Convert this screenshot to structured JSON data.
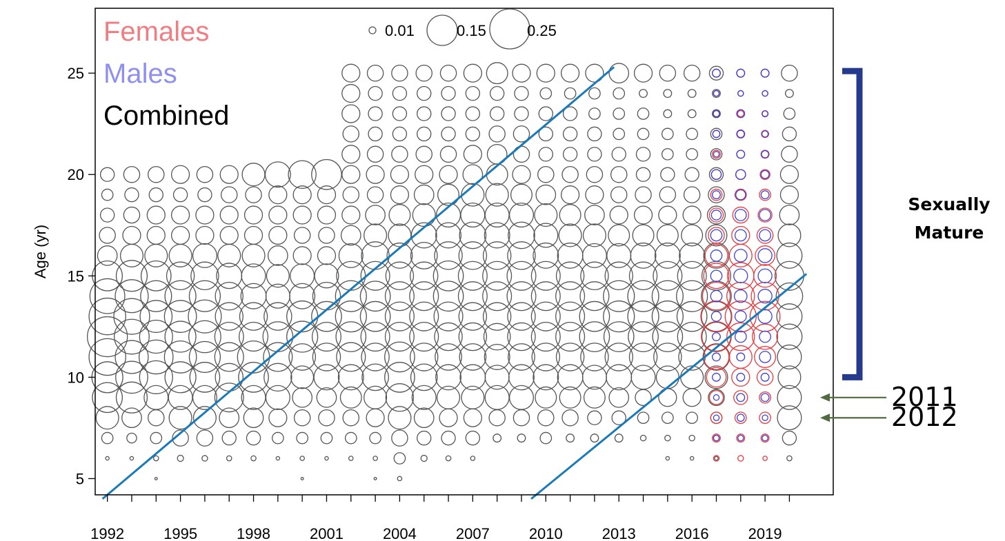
{
  "chart_data": {
    "type": "scatter",
    "subtype": "bubble",
    "ylabel": "Age (yr)",
    "xlabel": "",
    "x_tick_labels": [
      "1992",
      "1995",
      "1998",
      "2001",
      "2004",
      "2007",
      "2010",
      "2013",
      "2016",
      "2019"
    ],
    "y_tick_labels": [
      "5",
      "10",
      "15",
      "20",
      "25"
    ],
    "xlim": [
      1991.5,
      2021.8
    ],
    "ylim": [
      4.2,
      28.2
    ],
    "legend": {
      "placement": "top-left",
      "entries": [
        {
          "label": "Females",
          "color": "#f07d82"
        },
        {
          "label": "Males",
          "color": "#8f8fef"
        },
        {
          "label": "Combined",
          "color": "#000000"
        }
      ],
      "size_legend": [
        {
          "label": "0.01",
          "value": 0.01
        },
        {
          "label": "0.15",
          "value": 0.15
        },
        {
          "label": "0.25",
          "value": 0.25
        }
      ]
    },
    "series_colors": {
      "combined": "#555555",
      "females": "#e8393f",
      "males": "#4040d8"
    },
    "years": [
      1992,
      1993,
      1994,
      1995,
      1996,
      1997,
      1998,
      1999,
      2000,
      2001,
      2002,
      2003,
      2004,
      2005,
      2006,
      2007,
      2008,
      2009,
      2010,
      2011,
      2012,
      2013,
      2014,
      2015,
      2016,
      2017,
      2018,
      2019,
      2020
    ],
    "ages": [
      5,
      6,
      7,
      8,
      9,
      10,
      11,
      12,
      13,
      14,
      15,
      16,
      17,
      18,
      19,
      20,
      21,
      22,
      23,
      24,
      25
    ],
    "combined_by_year": [
      [
        0,
        0.002,
        0.02,
        0.08,
        0.14,
        0.15,
        0.21,
        0.25,
        0.21,
        0.19,
        0.14,
        0.06,
        0.04,
        0.03,
        0.02,
        0.03,
        0,
        0,
        0,
        0,
        0
      ],
      [
        0,
        0.002,
        0.015,
        0.06,
        0.15,
        0.16,
        0.17,
        0.19,
        0.2,
        0.17,
        0.15,
        0.08,
        0.05,
        0.04,
        0.03,
        0.04,
        0,
        0,
        0,
        0,
        0
      ],
      [
        0.001,
        0.004,
        0.02,
        0.04,
        0.09,
        0.17,
        0.18,
        0.17,
        0.16,
        0.15,
        0.14,
        0.08,
        0.05,
        0.05,
        0.03,
        0.04,
        0,
        0,
        0,
        0,
        0
      ],
      [
        0,
        0.006,
        0.04,
        0.08,
        0.09,
        0.15,
        0.16,
        0.15,
        0.16,
        0.15,
        0.12,
        0.08,
        0.05,
        0.05,
        0.03,
        0.05,
        0,
        0,
        0,
        0,
        0
      ],
      [
        0,
        0.005,
        0.04,
        0.08,
        0.09,
        0.14,
        0.15,
        0.16,
        0.17,
        0.15,
        0.12,
        0.09,
        0.05,
        0.05,
        0.03,
        0.04,
        0,
        0,
        0,
        0,
        0
      ],
      [
        0,
        0.004,
        0.03,
        0.06,
        0.13,
        0.12,
        0.13,
        0.13,
        0.12,
        0.12,
        0.1,
        0.08,
        0.05,
        0.05,
        0.04,
        0.05,
        0,
        0,
        0,
        0,
        0
      ],
      [
        0,
        0.004,
        0.03,
        0.06,
        0.09,
        0.14,
        0.16,
        0.13,
        0.12,
        0.1,
        0.09,
        0.08,
        0.05,
        0.05,
        0.04,
        0.08,
        0,
        0,
        0,
        0,
        0
      ],
      [
        0,
        0.002,
        0.02,
        0.05,
        0.09,
        0.12,
        0.13,
        0.14,
        0.12,
        0.09,
        0.08,
        0.06,
        0.05,
        0.05,
        0.05,
        0.1,
        0,
        0,
        0,
        0,
        0
      ],
      [
        0.001,
        0.003,
        0.02,
        0.04,
        0.06,
        0.08,
        0.11,
        0.15,
        0.15,
        0.1,
        0.09,
        0.05,
        0.04,
        0.05,
        0.05,
        0.12,
        0,
        0,
        0,
        0,
        0
      ],
      [
        0,
        0.002,
        0.02,
        0.04,
        0.06,
        0.1,
        0.12,
        0.13,
        0.14,
        0.12,
        0.09,
        0.05,
        0.04,
        0.05,
        0.05,
        0.14,
        0,
        0,
        0,
        0,
        0
      ],
      [
        0,
        0.003,
        0.02,
        0.04,
        0.07,
        0.1,
        0.13,
        0.14,
        0.15,
        0.15,
        0.13,
        0.09,
        0.06,
        0.05,
        0.04,
        0.05,
        0.05,
        0.04,
        0.05,
        0.05,
        0.05
      ],
      [
        0.001,
        0.003,
        0.02,
        0.05,
        0.08,
        0.11,
        0.12,
        0.13,
        0.14,
        0.14,
        0.13,
        0.12,
        0.08,
        0.06,
        0.04,
        0.05,
        0.04,
        0.03,
        0.03,
        0.03,
        0.04
      ],
      [
        0.003,
        0.02,
        0.04,
        0.08,
        0.12,
        0.14,
        0.14,
        0.13,
        0.13,
        0.13,
        0.12,
        0.1,
        0.08,
        0.07,
        0.05,
        0.05,
        0.04,
        0.03,
        0.03,
        0.03,
        0.04
      ],
      [
        0,
        0.006,
        0.03,
        0.06,
        0.09,
        0.11,
        0.12,
        0.13,
        0.13,
        0.13,
        0.12,
        0.11,
        0.1,
        0.08,
        0.06,
        0.05,
        0.04,
        0.03,
        0.03,
        0.03,
        0.04
      ],
      [
        0,
        0.004,
        0.03,
        0.05,
        0.08,
        0.1,
        0.11,
        0.12,
        0.13,
        0.14,
        0.14,
        0.12,
        0.1,
        0.09,
        0.07,
        0.05,
        0.04,
        0.03,
        0.03,
        0.03,
        0.04
      ],
      [
        0,
        0.003,
        0.03,
        0.05,
        0.08,
        0.1,
        0.11,
        0.12,
        0.12,
        0.13,
        0.13,
        0.12,
        0.11,
        0.09,
        0.08,
        0.06,
        0.05,
        0.03,
        0.03,
        0.03,
        0.05
      ],
      [
        0,
        0,
        0.01,
        0.04,
        0.09,
        0.09,
        0.1,
        0.11,
        0.12,
        0.13,
        0.13,
        0.12,
        0.1,
        0.09,
        0.08,
        0.07,
        0.06,
        0.04,
        0.03,
        0.03,
        0.07
      ],
      [
        0,
        0,
        0.01,
        0.04,
        0.09,
        0.1,
        0.11,
        0.12,
        0.12,
        0.13,
        0.13,
        0.12,
        0.11,
        0.09,
        0.07,
        0.05,
        0.04,
        0.04,
        0.03,
        0.03,
        0.05
      ],
      [
        0,
        0,
        0.02,
        0.04,
        0.07,
        0.1,
        0.12,
        0.13,
        0.13,
        0.13,
        0.13,
        0.1,
        0.09,
        0.08,
        0.06,
        0.04,
        0.03,
        0.03,
        0.03,
        0.02,
        0.05
      ],
      [
        0,
        0,
        0.01,
        0.04,
        0.07,
        0.1,
        0.12,
        0.13,
        0.13,
        0.13,
        0.12,
        0.1,
        0.08,
        0.07,
        0.05,
        0.04,
        0.03,
        0.03,
        0.03,
        0.02,
        0.05
      ],
      [
        0,
        0,
        0.01,
        0.03,
        0.07,
        0.09,
        0.12,
        0.14,
        0.14,
        0.13,
        0.12,
        0.09,
        0.08,
        0.06,
        0.05,
        0.04,
        0.03,
        0.03,
        0.02,
        0.02,
        0.05
      ],
      [
        0,
        0,
        0.01,
        0.03,
        0.06,
        0.1,
        0.12,
        0.14,
        0.15,
        0.15,
        0.12,
        0.09,
        0.07,
        0.05,
        0.04,
        0.04,
        0.03,
        0.02,
        0.02,
        0.02,
        0.06
      ],
      [
        0,
        0,
        0.005,
        0.02,
        0.04,
        0.09,
        0.12,
        0.14,
        0.15,
        0.15,
        0.12,
        0.1,
        0.07,
        0.05,
        0.04,
        0.03,
        0.03,
        0.02,
        0.02,
        0.01,
        0.05
      ],
      [
        0,
        0.002,
        0.005,
        0.02,
        0.05,
        0.08,
        0.12,
        0.14,
        0.15,
        0.15,
        0.13,
        0.1,
        0.07,
        0.05,
        0.04,
        0.03,
        0.02,
        0.02,
        0.01,
        0.01,
        0.04
      ],
      [
        0,
        0.002,
        0.005,
        0.02,
        0.05,
        0.08,
        0.11,
        0.13,
        0.14,
        0.15,
        0.13,
        0.1,
        0.07,
        0.05,
        0.04,
        0.03,
        0.02,
        0.02,
        0.01,
        0.01,
        0.04
      ],
      [
        0,
        0.002,
        0.005,
        0.02,
        0.04,
        0.08,
        0.11,
        0.13,
        0.14,
        0.14,
        0.13,
        0.1,
        0.07,
        0.05,
        0.04,
        0.03,
        0.02,
        0.02,
        0.01,
        0.01,
        0.03
      ],
      [
        0,
        0,
        0,
        0,
        0,
        0,
        0,
        0,
        0,
        0,
        0,
        0,
        0,
        0,
        0,
        0,
        0,
        0,
        0,
        0,
        0
      ],
      [
        0,
        0,
        0,
        0,
        0,
        0,
        0,
        0,
        0,
        0,
        0,
        0,
        0,
        0,
        0,
        0,
        0,
        0,
        0,
        0,
        0
      ],
      [
        0,
        0.004,
        0.03,
        0.09,
        0.09,
        0.08,
        0.09,
        0.1,
        0.1,
        0.11,
        0.13,
        0.1,
        0.08,
        0.06,
        0.05,
        0.05,
        0.04,
        0.03,
        0.02,
        0.01,
        0.04
      ]
    ],
    "females": {
      "years": [
        2017,
        2018,
        2019
      ],
      "values": [
        [
          0,
          0.005,
          0.01,
          0.02,
          0.03,
          0.06,
          0.1,
          0.14,
          0.15,
          0.12,
          0.1,
          0.08,
          0.04,
          0.03,
          0.02,
          0.015,
          0.01,
          0.008,
          0.006,
          0.005,
          0.01
        ],
        [
          0,
          0.005,
          0.01,
          0.02,
          0.03,
          0.05,
          0.08,
          0.12,
          0.15,
          0.12,
          0.11,
          0.08,
          0.05,
          0.04,
          0.02,
          0.015,
          0.01,
          0.008,
          0.006,
          0.005,
          0.01
        ],
        [
          0,
          0.003,
          0.01,
          0.02,
          0.02,
          0.04,
          0.07,
          0.1,
          0.14,
          0.12,
          0.08,
          0.06,
          0.04,
          0.03,
          0.02,
          0.015,
          0.01,
          0.008,
          0.006,
          0.005,
          0.01
        ]
      ]
    },
    "males": {
      "years": [
        2017,
        2018,
        2019
      ],
      "values": [
        [
          0,
          0,
          0.005,
          0.005,
          0.005,
          0.01,
          0.01,
          0.01,
          0.015,
          0.02,
          0.02,
          0.02,
          0.02,
          0.015,
          0.01,
          0.015,
          0.005,
          0.008,
          0.006,
          0.005,
          0.01
        ],
        [
          0,
          0,
          0.005,
          0.008,
          0.01,
          0.01,
          0.01,
          0.02,
          0.02,
          0.025,
          0.03,
          0.025,
          0.02,
          0.02,
          0.015,
          0.015,
          0.01,
          0.01,
          0.01,
          0.005,
          0.01
        ],
        [
          0,
          0,
          0.005,
          0.005,
          0.01,
          0.01,
          0.02,
          0.02,
          0.03,
          0.03,
          0.03,
          0.03,
          0.02,
          0.02,
          0.01,
          0.01,
          0.008,
          0.006,
          0.005,
          0.005,
          0.01
        ]
      ]
    },
    "cohort_lines": [
      {
        "x": [
          1991.8,
          2012.8
        ],
        "y": [
          4.0,
          25.3
        ],
        "color": "#1a7ab8"
      },
      {
        "x": [
          2009.4,
          2020.7
        ],
        "y": [
          4.0,
          15.1
        ],
        "color": "#1a7ab8"
      }
    ],
    "annotations": {
      "bracket_label_line1": "Sexually",
      "bracket_label_line2": "Mature",
      "bracket_color": "#253a8c",
      "bracket_range": [
        10,
        25
      ],
      "arrows": [
        {
          "label": "2011",
          "age": 9
        },
        {
          "label": "2012",
          "age": 8
        }
      ],
      "arrow_color": "#4f6b3f"
    }
  }
}
